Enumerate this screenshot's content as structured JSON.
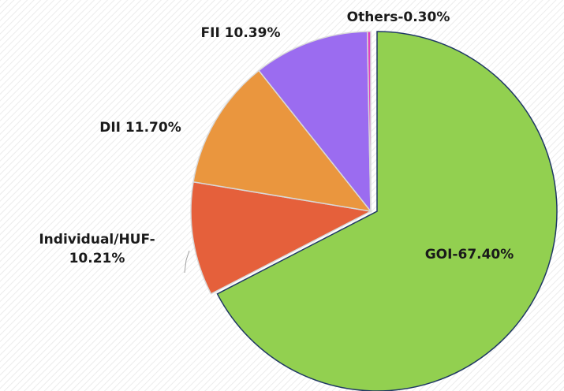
{
  "chart_data": {
    "type": "pie",
    "values": [
      67.4,
      10.21,
      11.7,
      10.39,
      0.3
    ],
    "value_labels": [
      "GOI-67.40%",
      "Individual/HUF-10.21%",
      "DII 11.70%",
      "FII 10.39%",
      "Others-0.30%"
    ],
    "colors": [
      "#92d050",
      "#e5603b",
      "#ea963e",
      "#9b6cf0",
      "#e040c0"
    ]
  }
}
